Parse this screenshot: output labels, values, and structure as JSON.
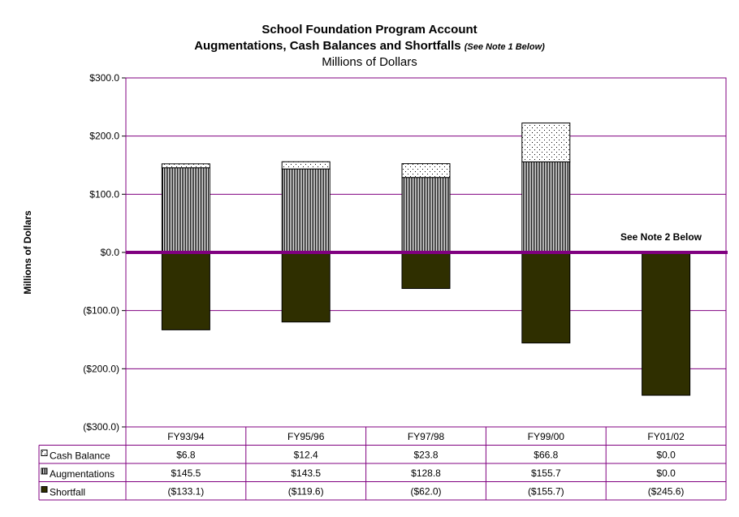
{
  "title": "School Foundation Program Account",
  "subtitle_main": "Augmentations, Cash Balances and Shortfalls",
  "subtitle_note": "(See Note 1 Below)",
  "units_line": "Millions of Dollars",
  "annotation": "See Note 2 Below",
  "colors": {
    "axis_line": "#800080",
    "grid": "#800080",
    "shortfall": "#2f2f00",
    "border": "#000000"
  },
  "chart_data": {
    "type": "bar",
    "stacked": true,
    "title": "School Foundation Program Account",
    "ylabel": "Millions of Dollars",
    "ylim": [
      -300,
      300
    ],
    "yticks": [
      300,
      200,
      100,
      0,
      -100,
      -200,
      -300
    ],
    "ytick_labels": [
      "$300.0",
      "$200.0",
      "$100.0",
      "$0.0",
      "($100.0)",
      "($200.0)",
      "($300.0)"
    ],
    "grid": true,
    "legend": "data-table",
    "categories": [
      "FY93/94",
      "FY95/96",
      "FY97/98",
      "FY99/00",
      "FY01/02"
    ],
    "series": [
      {
        "name": "Cash Balance",
        "pattern": "dots",
        "values": [
          6.8,
          12.4,
          23.8,
          66.8,
          0.0
        ],
        "labels": [
          "$6.8",
          "$12.4",
          "$23.8",
          "$66.8",
          "$0.0"
        ]
      },
      {
        "name": "Augmentations",
        "pattern": "vertical-lines",
        "values": [
          145.5,
          143.5,
          128.8,
          155.7,
          0.0
        ],
        "labels": [
          "$145.5",
          "$143.5",
          "$128.8",
          "$155.7",
          "$0.0"
        ]
      },
      {
        "name": "Shortfall",
        "pattern": "solid",
        "values": [
          -133.1,
          -119.6,
          -62.0,
          -155.7,
          -245.6
        ],
        "labels": [
          "($133.1)",
          "($119.6)",
          "($62.0)",
          "($155.7)",
          "($245.6)"
        ]
      }
    ]
  }
}
